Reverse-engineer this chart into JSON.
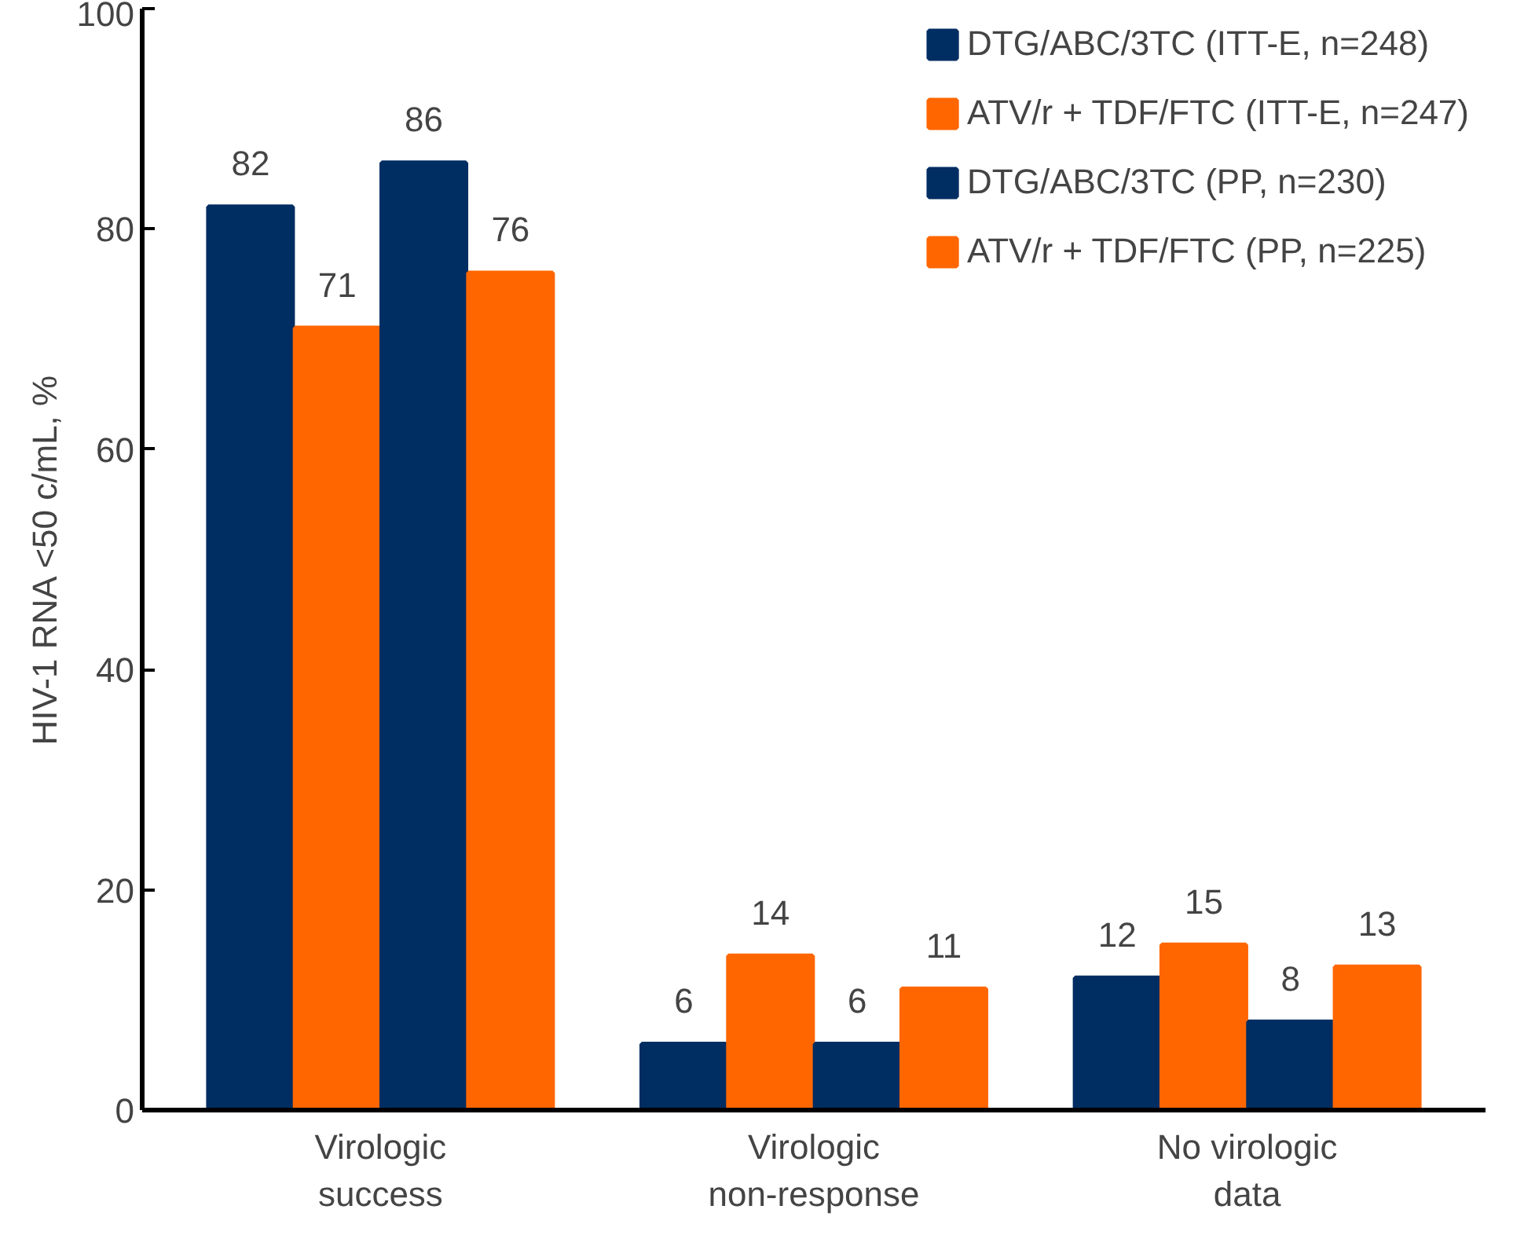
{
  "chart_data": {
    "type": "bar",
    "ylabel": "HIV-1 RNA <50 c/mL, %",
    "categories": [
      "Virologic\nsuccess",
      "Virologic\nnon-response",
      "No virologic\ndata"
    ],
    "series": [
      {
        "name": "DTG/ABC/3TC (ITT-E, n=248)",
        "color": "#002d62",
        "values": [
          82,
          6,
          12
        ]
      },
      {
        "name": "ATV/r + TDF/FTC (ITT-E, n=247)",
        "color": "#ff6600",
        "values": [
          71,
          14,
          15
        ]
      },
      {
        "name": "DTG/ABC/3TC (PP, n=230)",
        "color": "#002d62",
        "values": [
          86,
          6,
          8
        ]
      },
      {
        "name": "ATV/r + TDF/FTC (PP, n=225)",
        "color": "#ff6600",
        "values": [
          76,
          11,
          13
        ]
      }
    ],
    "ylim": [
      0,
      100
    ],
    "yticks": [
      0,
      20,
      40,
      60,
      80,
      100
    ],
    "grid": false,
    "legend": "top right",
    "data_labels": true
  }
}
